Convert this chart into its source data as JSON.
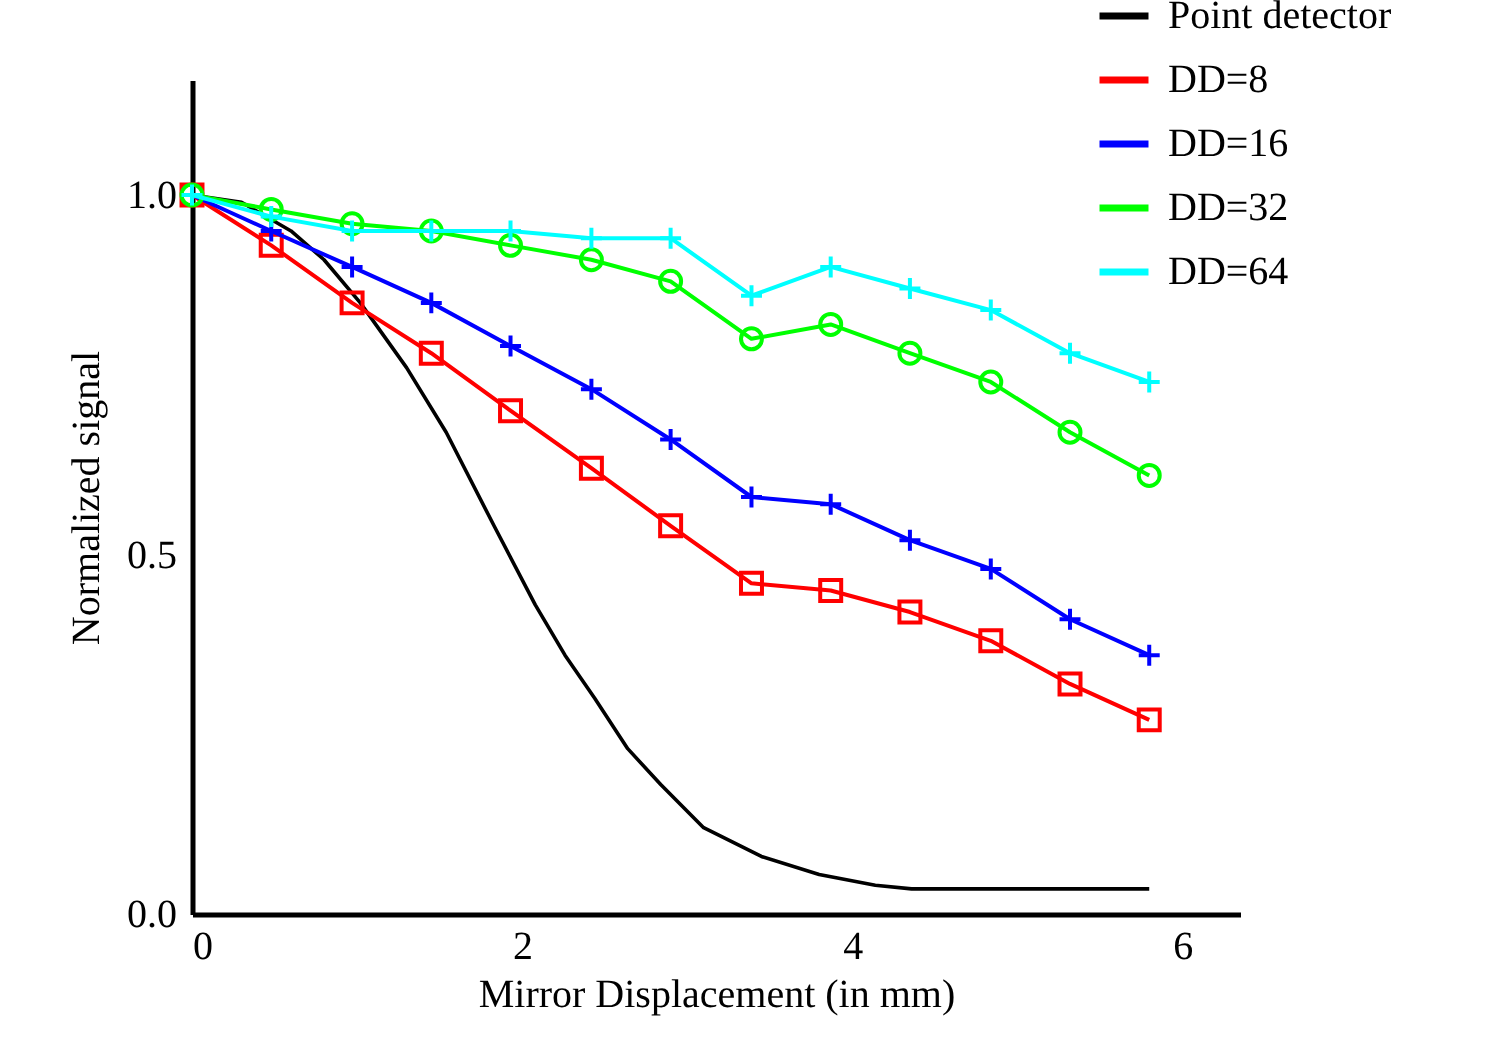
{
  "chart_data": {
    "type": "line",
    "xlabel": "Mirror Displacement (in mm)",
    "ylabel": "Normalized signal",
    "xlim": [
      0,
      6.35
    ],
    "ylim": [
      0,
      1.16
    ],
    "xticks": [
      0,
      2,
      4,
      6
    ],
    "yticks": [
      {
        "value": 0,
        "label": "0.0"
      },
      0.5,
      {
        "value": 1,
        "label": "1.0"
      }
    ],
    "grid": false,
    "legend": "top right",
    "line_style": "solid",
    "x": [
      0,
      0.48,
      0.97,
      1.45,
      1.93,
      2.42,
      2.9,
      3.39,
      3.87,
      4.35,
      4.84,
      5.32,
      5.8
    ],
    "series": [
      {
        "name": "Point detector",
        "color": "#000000",
        "marker": "none",
        "x": [
          0,
          0.3,
          0.6,
          0.8,
          1.02,
          1.3,
          1.54,
          1.83,
          2.08,
          2.26,
          2.44,
          2.64,
          2.84,
          3.1,
          3.45,
          3.8,
          4.14,
          4.36,
          5.8
        ],
        "values": [
          1.0,
          0.99,
          0.95,
          0.91,
          0.85,
          0.76,
          0.67,
          0.54,
          0.43,
          0.36,
          0.3,
          0.23,
          0.18,
          0.12,
          0.08,
          0.055,
          0.04,
          0.035,
          0.035
        ]
      },
      {
        "name": "DD=8",
        "color": "#ff0000",
        "marker": "square",
        "values": [
          1.0,
          0.93,
          0.85,
          0.78,
          0.7,
          0.62,
          0.54,
          0.46,
          0.45,
          0.42,
          0.38,
          0.32,
          0.27
        ]
      },
      {
        "name": "DD=16",
        "color": "#0000ff",
        "marker": "cross",
        "values": [
          1.0,
          0.95,
          0.9,
          0.85,
          0.79,
          0.73,
          0.66,
          0.58,
          0.57,
          0.52,
          0.48,
          0.41,
          0.36
        ]
      },
      {
        "name": "DD=32",
        "color": "#00ff00",
        "marker": "circle",
        "values": [
          1.0,
          0.98,
          0.96,
          0.95,
          0.93,
          0.91,
          0.88,
          0.8,
          0.82,
          0.78,
          0.74,
          0.67,
          0.61
        ]
      },
      {
        "name": "DD=64",
        "color": "#00ffff",
        "marker": "cross",
        "values": [
          1.0,
          0.97,
          0.95,
          0.95,
          0.95,
          0.94,
          0.94,
          0.86,
          0.9,
          0.87,
          0.84,
          0.78,
          0.74
        ]
      }
    ]
  }
}
